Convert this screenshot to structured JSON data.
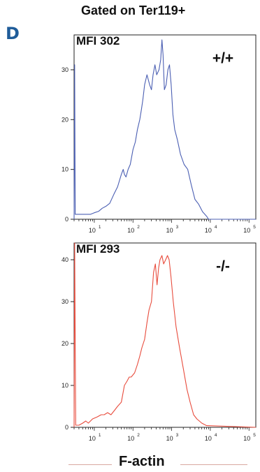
{
  "figure": {
    "panel_letter": "D",
    "title": "Gated on Ter119+",
    "x_axis_title": "F-actin"
  },
  "chart_data": [
    {
      "type": "area",
      "scale": "log-x",
      "mfi_label": "MFI 302",
      "genotype_label": "+/+",
      "line_color": "#4b5fb3",
      "xlim": [
        3,
        150000
      ],
      "ylim": [
        0,
        37
      ],
      "yticks": [
        0,
        10,
        20,
        30
      ],
      "xticks": [
        {
          "value": 10,
          "label": "10",
          "exp": "1"
        },
        {
          "value": 100,
          "label": "10",
          "exp": "2"
        },
        {
          "value": 1000,
          "label": "10",
          "exp": "3"
        },
        {
          "value": 10000,
          "label": "10",
          "exp": "4"
        },
        {
          "value": 100000,
          "label": "10",
          "exp": "5"
        }
      ],
      "series": [
        {
          "x": [
            3,
            3.1,
            3.2,
            4,
            6,
            8,
            10,
            13,
            16,
            20,
            25,
            32,
            40,
            50,
            56,
            60,
            66,
            75,
            85,
            100,
            115,
            130,
            150,
            165,
            180,
            200,
            230,
            270,
            300,
            330,
            370,
            410,
            470,
            520,
            560,
            600,
            650,
            720,
            800,
            880,
            970,
            1080,
            1200,
            1400,
            1700,
            2100,
            2600,
            3200,
            4000,
            5000,
            6300,
            8000,
            9000,
            150000
          ],
          "y": [
            0,
            31,
            1,
            1,
            1,
            1,
            1.3,
            1.6,
            2.2,
            2.6,
            3.2,
            5,
            6.5,
            9,
            10,
            9,
            8.5,
            10,
            11,
            14,
            15.5,
            18,
            20,
            22,
            24,
            27,
            29,
            27,
            26,
            29,
            31,
            29,
            30,
            32,
            36,
            33,
            26,
            27,
            30,
            31,
            27,
            21,
            18,
            16,
            13,
            11,
            10,
            7,
            4,
            3,
            1.5,
            0.6,
            0,
            0
          ]
        }
      ]
    },
    {
      "type": "area",
      "scale": "log-x",
      "mfi_label": "MFI 293",
      "genotype_label": "-/-",
      "line_color": "#e84c3d",
      "xlim": [
        3,
        150000
      ],
      "ylim": [
        0,
        44
      ],
      "yticks": [
        0,
        10,
        20,
        30,
        40
      ],
      "xticks": [
        {
          "value": 10,
          "label": "10",
          "exp": "1"
        },
        {
          "value": 100,
          "label": "10",
          "exp": "2"
        },
        {
          "value": 1000,
          "label": "10",
          "exp": "3"
        },
        {
          "value": 10000,
          "label": "10",
          "exp": "4"
        },
        {
          "value": 100000,
          "label": "10",
          "exp": "5"
        }
      ],
      "series": [
        {
          "x": [
            3,
            3.1,
            3.3,
            4,
            5,
            6,
            7,
            9,
            12,
            15,
            18,
            22,
            27,
            33,
            40,
            50,
            60,
            70,
            80,
            90,
            110,
            130,
            150,
            170,
            200,
            230,
            260,
            300,
            340,
            380,
            420,
            460,
            500,
            560,
            620,
            700,
            780,
            860,
            960,
            1100,
            1300,
            1600,
            2000,
            2500,
            3000,
            3700,
            4500,
            6000,
            8000,
            150000
          ],
          "y": [
            0,
            44,
            0.5,
            0.5,
            1,
            1.5,
            1,
            2,
            2.5,
            3,
            3,
            3.5,
            3,
            4,
            5,
            6,
            10,
            11,
            12,
            12,
            13,
            15,
            17,
            19,
            21,
            25,
            28,
            30,
            37,
            39,
            34,
            38,
            40,
            41,
            39,
            40,
            41,
            40,
            36,
            30,
            24,
            19,
            14,
            9,
            6,
            3,
            2,
            1,
            0.4,
            0
          ]
        }
      ]
    }
  ]
}
